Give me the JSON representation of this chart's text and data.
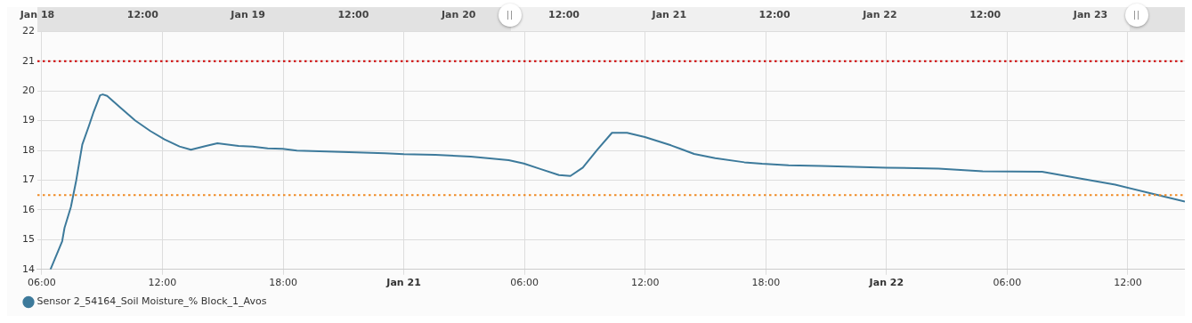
{
  "chart_data": {
    "type": "line",
    "x": [
      "--01-20T06:26",
      "--01-20T06:50",
      "--01-20T07:01",
      "--01-20T07:08",
      "--01-20T07:27",
      "--01-20T07:43",
      "--01-20T08:01",
      "--01-20T08:20",
      "--01-20T08:35",
      "--01-20T08:54",
      "--01-20T09:02",
      "--01-20T09:15",
      "--01-20T09:54",
      "--01-20T10:39",
      "--01-20T11:24",
      "--01-20T12:06",
      "--01-20T12:51",
      "--01-20T13:25",
      "--01-20T14:10",
      "--01-20T14:44",
      "--01-20T15:47",
      "--01-20T16:29",
      "--01-20T17:14",
      "--01-20T17:59",
      "--01-20T18:41",
      "--01-20T20:11",
      "--01-20T21:38",
      "--01-20T23:04",
      "--01-21T00:00",
      "--01-21T01:34",
      "--01-21T03:20",
      "--01-21T05:13",
      "--01-21T05:58",
      "--01-21T06:43",
      "--01-21T07:43",
      "--01-21T08:17",
      "--01-21T08:54",
      "--01-21T09:37",
      "--01-21T10:21",
      "--01-21T11:06",
      "--01-21T11:59",
      "--01-21T13:17",
      "--01-21T14:26",
      "--01-21T15:29",
      "--01-21T16:56",
      "--01-21T17:49",
      "--01-21T19:08",
      "--01-21T20:45",
      "--01-22T00:00",
      "--01-22T02:35",
      "--01-22T04:47",
      "--01-22T07:44",
      "--01-22T09:55",
      "--01-22T11:22",
      "--01-22T13:08",
      "--01-22T14:50"
    ],
    "series": [
      {
        "name": "Sensor 2_54164_Soil Moisture_% Block_1_Avos",
        "color": "#3d7a9b",
        "values": [
          14.0,
          14.65,
          14.95,
          15.4,
          16.1,
          17.0,
          18.2,
          18.8,
          19.3,
          19.85,
          19.88,
          19.83,
          19.44,
          19.0,
          18.65,
          18.37,
          18.13,
          18.02,
          18.15,
          18.24,
          18.15,
          18.13,
          18.07,
          18.05,
          17.99,
          17.96,
          17.93,
          17.9,
          17.87,
          17.85,
          17.79,
          17.67,
          17.56,
          17.39,
          17.17,
          17.14,
          17.42,
          18.02,
          18.59,
          18.59,
          18.45,
          18.17,
          17.88,
          17.74,
          17.6,
          17.55,
          17.5,
          17.48,
          17.42,
          17.39,
          17.3,
          17.28,
          17.02,
          16.85,
          16.56,
          16.28
        ]
      }
    ],
    "xlim": [
      "--01-20T05:47",
      "--01-22T14:50"
    ],
    "xticks": [
      {
        "value": "--01-20T06:00",
        "label": "06:00"
      },
      {
        "value": "--01-20T12:00",
        "label": "12:00"
      },
      {
        "value": "--01-20T18:00",
        "label": "18:00"
      },
      {
        "value": "--01-21T00:00",
        "label": "Jan 21"
      },
      {
        "value": "--01-21T06:00",
        "label": "06:00"
      },
      {
        "value": "--01-21T12:00",
        "label": "12:00"
      },
      {
        "value": "--01-21T18:00",
        "label": "18:00"
      },
      {
        "value": "--01-22T00:00",
        "label": "Jan 22"
      },
      {
        "value": "--01-22T06:00",
        "label": "06:00"
      },
      {
        "value": "--01-22T12:00",
        "label": "12:00"
      }
    ],
    "x2lim": [
      "--01-18T00:00",
      "--01-23T10:45"
    ],
    "x2ticks": [
      {
        "value": "--01-18T00:00",
        "label": "Jan 18"
      },
      {
        "value": "--01-18T12:00",
        "label": "12:00"
      },
      {
        "value": "--01-19T00:00",
        "label": "Jan 19"
      },
      {
        "value": "--01-19T12:00",
        "label": "12:00"
      },
      {
        "value": "--01-20T00:00",
        "label": "Jan 20"
      },
      {
        "value": "--01-20T12:00",
        "label": "12:00"
      },
      {
        "value": "--01-21T00:00",
        "label": "Jan 21"
      },
      {
        "value": "--01-21T12:00",
        "label": "12:00"
      },
      {
        "value": "--01-22T00:00",
        "label": "Jan 22"
      },
      {
        "value": "--01-22T12:00",
        "label": "12:00"
      },
      {
        "value": "--01-23T00:00",
        "label": "Jan 23"
      }
    ],
    "ylim": [
      14,
      22
    ],
    "yticks": [
      14,
      15,
      16,
      17,
      18,
      19,
      20,
      21,
      22
    ],
    "ref_lines": [
      {
        "axis": "y",
        "value": 21,
        "color": "#cc0000",
        "line_style": "dotted"
      },
      {
        "axis": "y",
        "value": 16.5,
        "color": "#f08a24",
        "line_style": "dotted"
      }
    ],
    "grid": true,
    "legend": "bottom left",
    "marker": "none",
    "line_style": "solid"
  }
}
